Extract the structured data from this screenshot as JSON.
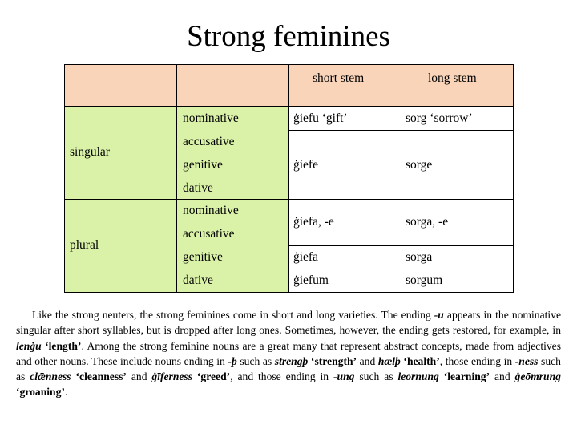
{
  "title": "Strong feminines",
  "colors": {
    "header_peach": "#f9d4b8",
    "label_green": "#daf2a8",
    "text": "#000000"
  },
  "table": {
    "col_headers": {
      "short": "short stem",
      "long": "long stem"
    },
    "groups": {
      "singular": "singular",
      "plural": "plural"
    },
    "cases": {
      "sg_nom": "nominative",
      "sg_acc": "accusative",
      "sg_gen": "genitive",
      "sg_dat": "dative",
      "pl_nom": "nominative",
      "pl_acc": "accusative",
      "pl_gen": "genitive",
      "pl_dat": "dative"
    },
    "forms": {
      "sg_nom_short": "ġiefu ‘gift’",
      "sg_nom_long": "sorg ‘sorrow’",
      "sg_oblique_short": "ġiefe",
      "sg_oblique_long": "sorge",
      "pl_nomacc_short": "ġiefa, -e",
      "pl_nomacc_long": "sorga, -e",
      "pl_gen_short": "ġiefa",
      "pl_gen_long": "sorga",
      "pl_dat_short": "ġiefum",
      "pl_dat_long": "sorgum"
    }
  },
  "paragraph": {
    "s1": "Like the strong neuters, the strong feminines come in short and long varieties. The ending ",
    "u": "-u",
    "s2": " appears in the nominative singular after short syllables, but is dropped after long ones. Sometimes, however, the ending gets restored, for example, in ",
    "lengu": "lenġu",
    "lengu_gloss": "‘length’",
    "s3": ". Among the strong feminine nouns are a great many that represent abstract concepts, made from adjectives and other nouns. These include nouns ending in ",
    "th": "-þ",
    "s4": " such as ",
    "strength": "strengþ",
    "strength_gloss": "‘strength’",
    "s5": " and ",
    "health": "hǣlþ",
    "health_gloss": "‘health’",
    "s6": ", those ending in ",
    "ness": "-ness",
    "s7": " such as ",
    "cleanness": "clǣnness",
    "cleanness_gloss": "‘cleanness’",
    "s8": " and ",
    "greed": "ġīferness",
    "greed_gloss": "‘greed’",
    "s9": ", and those ending in ",
    "ung": "-ung",
    "s10": " such as ",
    "learning": "leornung",
    "learning_gloss": "‘learning’",
    "s11": " and ",
    "groaning": "ġeōmrung",
    "groaning_gloss": "‘groaning’",
    "s12": "."
  }
}
